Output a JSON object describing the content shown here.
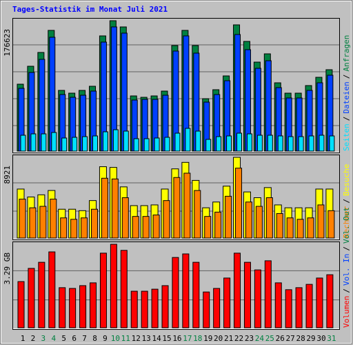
{
  "chart_data": [
    {
      "type": "bar",
      "title": "Tages-Statistik im Monat Juli 2021",
      "legend_separator": "/",
      "grid_lines": 4,
      "ylim": [
        0,
        176623
      ],
      "yticks": [
        176623
      ],
      "series": [
        {
          "name": "Anfragen",
          "color": "#008040",
          "values": [
            90650,
            114940,
            133640,
            163540,
            82240,
            78500,
            82240,
            87840,
            156060,
            176623,
            168210,
            74760,
            72890,
            74760,
            81300,
            142980,
            163540,
            142980,
            71020,
            83170,
            101860,
            171010,
            148590,
            120550,
            131760,
            92520,
            78500,
            78500,
            88780,
            99990,
            110270
          ]
        },
        {
          "name": "Dateien",
          "color": "#0040ff",
          "values": [
            85040,
            106530,
            124290,
            154190,
            76630,
            72890,
            75690,
            81300,
            147650,
            168210,
            159800,
            69150,
            70090,
            70090,
            75690,
            135500,
            156060,
            132700,
            66350,
            76630,
            95320,
            157930,
            137370,
            112140,
            122420,
            85970,
            71960,
            71960,
            82240,
            92520,
            102800
          ]
        },
        {
          "name": "Seiten",
          "color": "#00e0ff",
          "values": [
            21490,
            23360,
            23360,
            25230,
            17760,
            18690,
            19620,
            20560,
            26170,
            28970,
            27100,
            16820,
            16820,
            17760,
            18690,
            24300,
            30840,
            27100,
            15890,
            19620,
            20560,
            24300,
            23360,
            21490,
            21490,
            20560,
            19620,
            19620,
            20560,
            21490,
            20560
          ]
        }
      ]
    },
    {
      "type": "bar",
      "legend_separator": "/",
      "grid_lines": 2,
      "ylim": [
        0,
        8921
      ],
      "yticks": [
        8921
      ],
      "series": [
        {
          "name": "Besuche",
          "color": "#ffff00",
          "values": [
            5416,
            4540,
            4779,
            5257,
            3186,
            3186,
            3027,
            4142,
            7885,
            7806,
            5655,
            3584,
            3584,
            3664,
            5416,
            7646,
            8363,
            6372,
            3345,
            3983,
            5735,
            8921,
            5098,
            4460,
            5576,
            3664,
            3345,
            3345,
            3345,
            5416,
            5416
          ]
        },
        {
          "name": "Rechner",
          "color": "#ff8000",
          "values": [
            4301,
            3345,
            3505,
            4301,
            2230,
            2071,
            2230,
            3186,
            6611,
            6531,
            4460,
            2390,
            2390,
            2549,
            4142,
            6691,
            7169,
            5257,
            2390,
            2867,
            4620,
            7726,
            3983,
            3505,
            4460,
            2708,
            2230,
            2071,
            2230,
            3664,
            3027
          ]
        }
      ]
    },
    {
      "type": "bar",
      "legend_separator": "/",
      "grid_lines": 2,
      "ylim": [
        0,
        3.29
      ],
      "yticks": [
        {
          "value": 3.29,
          "label": "3.29 GB"
        }
      ],
      "categories": [
        "1",
        "2",
        "3",
        "4",
        "5",
        "6",
        "7",
        "8",
        "9",
        "10",
        "11",
        "12",
        "13",
        "14",
        "15",
        "16",
        "17",
        "18",
        "19",
        "20",
        "21",
        "22",
        "23",
        "24",
        "25",
        "26",
        "27",
        "28",
        "29",
        "30",
        "31"
      ],
      "category_colors": [
        "#000000",
        "#000000",
        "#008040",
        "#008040",
        "#000000",
        "#000000",
        "#000000",
        "#000000",
        "#000000",
        "#008040",
        "#008040",
        "#000000",
        "#000000",
        "#000000",
        "#000000",
        "#000000",
        "#008040",
        "#008040",
        "#000000",
        "#000000",
        "#000000",
        "#000000",
        "#000000",
        "#008040",
        "#008040",
        "#000000",
        "#000000",
        "#000000",
        "#000000",
        "#000000",
        "#008040"
      ],
      "series": [
        {
          "name": "Vol. Out",
          "color": "#008040",
          "values": [
            0,
            0,
            0,
            0,
            0,
            0,
            0,
            0,
            0,
            0,
            0,
            0,
            0,
            0,
            0,
            0,
            0,
            0,
            0,
            0,
            0,
            0,
            0,
            0,
            0,
            0,
            0,
            0,
            0,
            0,
            0
          ]
        },
        {
          "name": "Vol. In",
          "color": "#0040ff",
          "values": [
            0,
            0,
            0,
            0,
            0,
            0,
            0,
            0,
            0,
            0,
            0,
            0,
            0,
            0,
            0,
            0,
            0,
            0,
            0,
            0,
            0,
            0,
            0,
            0,
            0,
            0,
            0,
            0,
            0,
            0,
            0
          ]
        },
        {
          "name": "Volumen",
          "color": "#ff0000",
          "values": [
            1.82,
            2.34,
            2.58,
            2.99,
            1.58,
            1.55,
            1.66,
            1.77,
            2.94,
            3.29,
            3.05,
            1.44,
            1.44,
            1.52,
            1.66,
            2.77,
            2.91,
            2.58,
            1.41,
            1.55,
            1.96,
            2.94,
            2.58,
            2.28,
            2.64,
            1.77,
            1.5,
            1.58,
            1.71,
            1.96,
            2.09
          ]
        }
      ]
    }
  ]
}
